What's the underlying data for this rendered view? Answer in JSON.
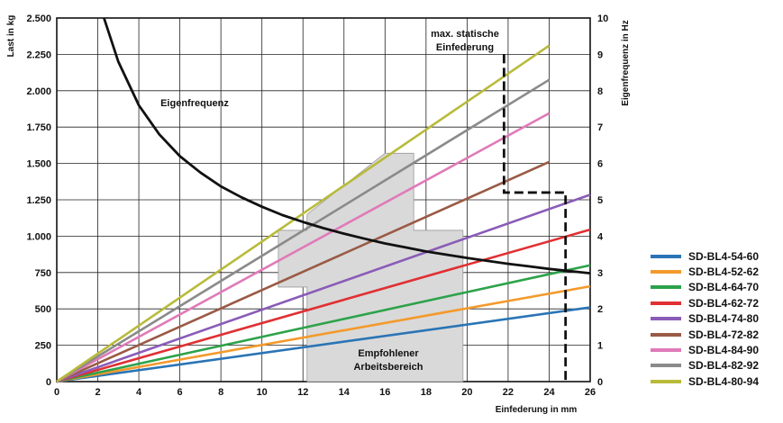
{
  "chart_data": {
    "type": "line",
    "x": {
      "label": "Einfederung in mm",
      "range": [
        0,
        26
      ],
      "ticks": [
        0,
        2,
        4,
        6,
        8,
        10,
        12,
        14,
        16,
        18,
        20,
        22,
        24,
        26
      ],
      "tick_labels": [
        "0",
        "2",
        "4",
        "6",
        "8",
        "10",
        "12",
        "14",
        "16",
        "18",
        "20",
        "22",
        "24",
        "26"
      ]
    },
    "y_left": {
      "label": "Last in kg",
      "range": [
        0,
        2500
      ],
      "ticks": [
        0,
        250,
        500,
        750,
        1000,
        1250,
        1500,
        1750,
        2000,
        2250,
        2500
      ],
      "tick_labels": [
        "0",
        "250",
        "500",
        "750",
        "1.000",
        "1.250",
        "1.500",
        "1.750",
        "2.000",
        "2.250",
        "2.500"
      ]
    },
    "y_right": {
      "label": "Eigenfrequenz in Hz",
      "range": [
        0,
        10
      ],
      "ticks": [
        0,
        1,
        2,
        3,
        4,
        5,
        6,
        7,
        8,
        9,
        10
      ],
      "tick_labels": [
        "0",
        "1",
        "2",
        "3",
        "4",
        "5",
        "6",
        "7",
        "8",
        "9",
        "10"
      ]
    },
    "grid": true,
    "series": [
      {
        "name": "SD-BL4-54-60",
        "color": "#2a74b5",
        "x": [
          0,
          26
        ],
        "y": [
          0,
          510
        ]
      },
      {
        "name": "SD-BL4-52-62",
        "color": "#f39a2c",
        "x": [
          0,
          26
        ],
        "y": [
          0,
          655
        ]
      },
      {
        "name": "SD-BL4-64-70",
        "color": "#2ca24a",
        "x": [
          0,
          26
        ],
        "y": [
          0,
          800
        ]
      },
      {
        "name": "SD-BL4-62-72",
        "color": "#e03033",
        "x": [
          0,
          26
        ],
        "y": [
          0,
          1045
        ]
      },
      {
        "name": "SD-BL4-74-80",
        "color": "#8a5cb8",
        "x": [
          0,
          26
        ],
        "y": [
          0,
          1285
        ]
      },
      {
        "name": "SD-BL4-72-82",
        "color": "#9a5a45",
        "x": [
          0,
          24
        ],
        "y": [
          0,
          1510
        ]
      },
      {
        "name": "SD-BL4-84-90",
        "color": "#e07ab8",
        "x": [
          0,
          24
        ],
        "y": [
          0,
          1845
        ]
      },
      {
        "name": "SD-BL4-82-92",
        "color": "#8a8a8a",
        "x": [
          0,
          24
        ],
        "y": [
          0,
          2075
        ]
      },
      {
        "name": "SD-BL4-80-94",
        "color": "#b8bb3a",
        "x": [
          0,
          24
        ],
        "y": [
          0,
          2310
        ]
      }
    ],
    "natural_frequency": {
      "name": "Eigenfrequenz",
      "axis": "right",
      "color": "#111111",
      "x": [
        2.3,
        3,
        4,
        5,
        6,
        7,
        8,
        9,
        10,
        11,
        12,
        13,
        14,
        15,
        16,
        17,
        18,
        19,
        20,
        21,
        22,
        23,
        24,
        25,
        26
      ],
      "y": [
        10.0,
        8.8,
        7.6,
        6.8,
        6.2,
        5.75,
        5.37,
        5.07,
        4.81,
        4.58,
        4.39,
        4.22,
        4.07,
        3.93,
        3.8,
        3.69,
        3.58,
        3.49,
        3.4,
        3.32,
        3.24,
        3.17,
        3.1,
        3.04,
        2.98
      ]
    },
    "recommended_range": {
      "label_line1": "Empfohlener",
      "label_line2": "Arbeitsbereich",
      "color": "#d9d9d9",
      "outline": [
        [
          12.2,
          0
        ],
        [
          12.2,
          650
        ],
        [
          10.8,
          650
        ],
        [
          10.8,
          1040
        ],
        [
          12.2,
          1040
        ],
        [
          12.2,
          1150
        ],
        [
          16.0,
          1570
        ],
        [
          17.4,
          1570
        ],
        [
          17.4,
          1040
        ],
        [
          19.8,
          1040
        ],
        [
          19.8,
          0
        ]
      ]
    },
    "max_static_deflection": {
      "label_line1": "max. statische",
      "label_line2": "Einfederung",
      "lines": [
        {
          "x": [
            21.8,
            21.8,
            24.8,
            24.8
          ],
          "y": [
            2250,
            1300,
            1300,
            0
          ]
        }
      ]
    },
    "annotations": {
      "eigenfrequenz": "Eigenfrequenz"
    }
  }
}
